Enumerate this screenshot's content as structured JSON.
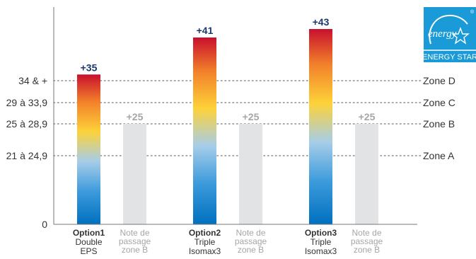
{
  "chart_data": {
    "type": "bar",
    "y_tick_labels": [
      "34 & +",
      "29 à 33,9",
      "25 à 28,9",
      "21 à 24,9",
      "0"
    ],
    "zones": [
      {
        "label": "Zone D",
        "y": 34
      },
      {
        "label": "Zone C",
        "y": 29
      },
      {
        "label": "Zone B",
        "y": 25
      },
      {
        "label": "Zone A",
        "y": 21
      }
    ],
    "groups": [
      {
        "name": "Option1",
        "sub": [
          "Double",
          "EPS"
        ],
        "value": 35,
        "value_label": "+35",
        "ref_label": [
          "Note de",
          "passage",
          "zone B"
        ],
        "ref_value": 25,
        "ref_value_label": "+25"
      },
      {
        "name": "Option2",
        "sub": [
          "Triple",
          "Isomax3"
        ],
        "value": 41,
        "value_label": "+41",
        "ref_label": [
          "Note de",
          "passage",
          "zone B"
        ],
        "ref_value": 25,
        "ref_value_label": "+25"
      },
      {
        "name": "Option3",
        "sub": [
          "Triple",
          "Isomax3"
        ],
        "value": 43,
        "value_label": "+43",
        "ref_label": [
          "Note de",
          "passage",
          "zone B"
        ],
        "ref_value": 25,
        "ref_value_label": "+25"
      }
    ],
    "grid": "dotted zone lines",
    "gradient": [
      "#c8102e",
      "#f2802a",
      "#fdd239",
      "#9cc7e6",
      "#0070bf"
    ],
    "ref_color": "#e2e3e5",
    "value_label_color": "#1b3a6b",
    "ref_label_color": "#a6a6a6"
  },
  "logo": {
    "text": "ENERGY STAR",
    "script": "energy",
    "mark": "®",
    "color": "#1a9ad6"
  }
}
